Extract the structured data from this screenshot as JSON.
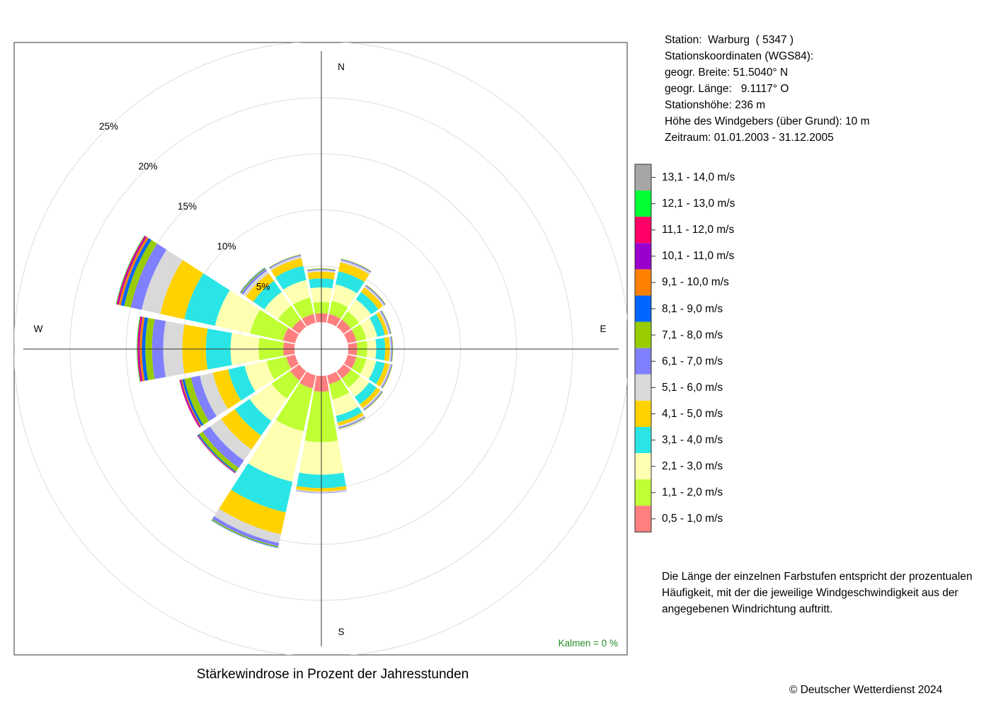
{
  "title": "Stärkewindrose in Prozent der Jahresstunden",
  "station": {
    "line1": "Station:  Warburg  ( 5347 )",
    "line2": "Stationskoordinaten (WGS84):",
    "line3": "geogr. Breite: 51.5040° N",
    "line4": "geogr. Länge:   9.1117° O",
    "line5": "Stationshöhe: 236 m",
    "line6": "Höhe des Windgebers (über Grund): 10 m",
    "line7": "Zeitraum: 01.01.2003 - 31.12.2005"
  },
  "note": "Die Länge der einzelnen Farbstufen entspricht der prozentualen Häufigkeit, mit der die jeweilige Windgeschwindigkeit aus der angegebenen Windrichtung auftritt.",
  "copyright": "© Deutscher Wetterdienst  2024",
  "calm_label": "Kalmen  =  0 %",
  "chart_data": {
    "type": "wind-rose",
    "directions": [
      "N",
      "NNE",
      "NE",
      "ENE",
      "E",
      "ESE",
      "SE",
      "SSE",
      "S",
      "SSW",
      "SW",
      "WSW",
      "W",
      "WNW",
      "NW",
      "NNW"
    ],
    "compass_labels": [
      "N",
      "E",
      "S",
      "W"
    ],
    "rings": [
      "5%",
      "10%",
      "15%",
      "20%",
      "25%"
    ],
    "ring_values": [
      5,
      10,
      15,
      20,
      25
    ],
    "classes": [
      {
        "label": "0,5 - 1,0 m/s",
        "color": "#FF7F7F"
      },
      {
        "label": "1,1 - 2,0 m/s",
        "color": "#BFFF33"
      },
      {
        "label": "2,1 - 3,0 m/s",
        "color": "#FFFFB2"
      },
      {
        "label": "3,1 - 4,0 m/s",
        "color": "#2AE5E5"
      },
      {
        "label": "4,1 - 5,0 m/s",
        "color": "#FFD200"
      },
      {
        "label": "5,1 - 6,0 m/s",
        "color": "#D9D9D9"
      },
      {
        "label": "6,1 - 7,0 m/s",
        "color": "#8080FF"
      },
      {
        "label": "7,1 - 8,0 m/s",
        "color": "#99CC00"
      },
      {
        "label": "8,1 - 9,0 m/s",
        "color": "#0066FF"
      },
      {
        "label": "9,1 - 10,0 m/s",
        "color": "#FF8000"
      },
      {
        "label": "10,1 - 11,0 m/s",
        "color": "#9900CC"
      },
      {
        "label": "11,1 - 12,0 m/s",
        "color": "#FF0066"
      },
      {
        "label": "12,1 - 13,0 m/s",
        "color": "#00FF33"
      },
      {
        "label": "13,1 - 14,0 m/s",
        "color": "#A6A6A6"
      }
    ],
    "series": [
      {
        "direction": "N",
        "values": [
          0.8,
          1.0,
          1.3,
          0.8,
          0.6,
          0.15,
          0.1,
          0.05,
          0,
          0,
          0,
          0,
          0,
          0
        ]
      },
      {
        "direction": "NNE",
        "values": [
          0.8,
          1.2,
          1.5,
          1.2,
          0.8,
          0.2,
          0.1,
          0.05,
          0,
          0,
          0,
          0,
          0,
          0
        ]
      },
      {
        "direction": "NE",
        "values": [
          0.8,
          0.9,
          1.3,
          0.8,
          0.5,
          0.15,
          0.1,
          0.05,
          0,
          0,
          0,
          0,
          0,
          0
        ]
      },
      {
        "direction": "ENE",
        "values": [
          0.8,
          0.9,
          1.0,
          0.7,
          0.3,
          0.15,
          0.1,
          0.05,
          0,
          0,
          0,
          0,
          0,
          0
        ]
      },
      {
        "direction": "E",
        "values": [
          0.8,
          0.9,
          0.8,
          0.8,
          0.4,
          0.15,
          0.1,
          0.05,
          0,
          0,
          0,
          0,
          0,
          0
        ]
      },
      {
        "direction": "ESE",
        "values": [
          0.8,
          0.9,
          0.9,
          0.8,
          0.4,
          0.15,
          0.1,
          0.05,
          0,
          0,
          0,
          0,
          0,
          0
        ]
      },
      {
        "direction": "SE",
        "values": [
          0.8,
          1.0,
          1.0,
          0.8,
          0.4,
          0.15,
          0.1,
          0.05,
          0,
          0,
          0,
          0,
          0,
          0
        ]
      },
      {
        "direction": "SSE",
        "values": [
          0.8,
          1.4,
          1.5,
          0.6,
          0.3,
          0.15,
          0.1,
          0.05,
          0,
          0,
          0,
          0,
          0,
          0
        ]
      },
      {
        "direction": "S",
        "values": [
          1.4,
          4.5,
          2.9,
          1.2,
          0.3,
          0.1,
          0.05,
          0,
          0,
          0,
          0,
          0,
          0,
          0
        ]
      },
      {
        "direction": "SSW",
        "values": [
          1.2,
          3.9,
          4.6,
          2.8,
          2.0,
          0.8,
          0.3,
          0.1,
          0.05,
          0,
          0,
          0,
          0,
          0
        ]
      },
      {
        "direction": "SW",
        "values": [
          1.0,
          2.0,
          2.4,
          1.6,
          1.5,
          1.2,
          0.8,
          0.4,
          0.1,
          0.05,
          0.05,
          0,
          0,
          0
        ]
      },
      {
        "direction": "WSW",
        "values": [
          0.8,
          1.8,
          2.0,
          1.5,
          1.4,
          1.2,
          0.8,
          0.6,
          0.2,
          0.1,
          0.1,
          0.05,
          0,
          0
        ]
      },
      {
        "direction": "W",
        "values": [
          1.0,
          2.2,
          2.5,
          2.2,
          2.1,
          1.7,
          1.0,
          0.6,
          0.3,
          0.2,
          0.1,
          0.1,
          0.05,
          0
        ]
      },
      {
        "direction": "WNW",
        "values": [
          1.1,
          3.0,
          3.2,
          2.8,
          2.2,
          1.7,
          1.0,
          0.6,
          0.3,
          0.2,
          0.1,
          0.1,
          0.05,
          0
        ]
      },
      {
        "direction": "NW",
        "values": [
          0.8,
          1.5,
          1.5,
          1.2,
          0.8,
          0.3,
          0.2,
          0.1,
          0.05,
          0,
          0,
          0,
          0,
          0
        ]
      },
      {
        "direction": "NNW",
        "values": [
          0.8,
          1.5,
          1.6,
          1.3,
          0.7,
          0.2,
          0.1,
          0.05,
          0,
          0,
          0,
          0,
          0,
          0
        ]
      }
    ]
  }
}
